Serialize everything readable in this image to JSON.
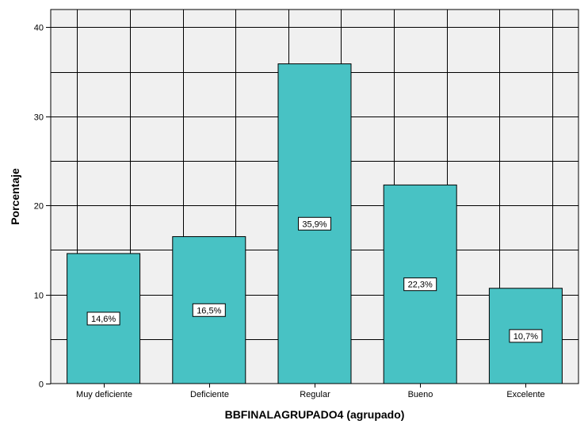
{
  "chart_data": {
    "type": "bar",
    "categories": [
      "Muy deficiente",
      "Deficiente",
      "Regular",
      "Bueno",
      "Excelente"
    ],
    "values": [
      14.6,
      16.5,
      35.9,
      22.3,
      10.7
    ],
    "data_labels": [
      "14,6%",
      "16,5%",
      "35,9%",
      "22,3%",
      "10,7%"
    ],
    "xlabel": "BBFINALAGRUPADO4 (agrupado)",
    "ylabel": "Porcentaje",
    "ylim": [
      0,
      42
    ],
    "yticks": [
      0,
      10,
      20,
      30,
      40
    ],
    "ytick_labels": [
      "0",
      "10",
      "20",
      "30",
      "40"
    ],
    "grid": true,
    "bar_color": "#48C2C4",
    "plot_background": "#F0F0F0"
  }
}
